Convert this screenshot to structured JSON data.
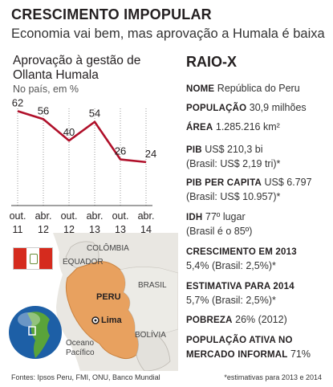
{
  "header": {
    "title": "CRESCIMENTO IMPOPULAR",
    "subtitle": "Economia vai bem, mas aprovação a Humala é baixa"
  },
  "chart_title": "Aprovação à gestão de Ollanta Humala",
  "chart_unit": "No país, em %",
  "chart_data": {
    "type": "line",
    "title": "Aprovação à gestão de Ollanta Humala",
    "subtitle": "No país, em %",
    "categories": [
      [
        "out.",
        "11"
      ],
      [
        "abr.",
        "12"
      ],
      [
        "out.",
        "12"
      ],
      [
        "abr.",
        "13"
      ],
      [
        "out.",
        "13"
      ],
      [
        "abr.",
        "14"
      ]
    ],
    "values": [
      62,
      56,
      40,
      54,
      26,
      24
    ],
    "data_labels": [
      "62",
      "56",
      "40",
      "54",
      "26",
      "24"
    ],
    "ylim": [
      0,
      70
    ],
    "grid": "vertical dotted",
    "line_color": "#b0102a"
  },
  "raio_x": {
    "heading": "RAIO-X",
    "items": [
      {
        "label": "NOME",
        "value": "República do Peru"
      },
      {
        "label": "POPULAÇÃO",
        "value": "30,9 milhões"
      },
      {
        "label": "ÁREA",
        "value": "1.285.216 km²"
      },
      {
        "label": "PIB",
        "value": "US$ 210,3 bi",
        "value2": "(Brasil: US$ 2,19 tri)*"
      },
      {
        "label": "PIB PER CAPITA",
        "value": "US$ 6.797",
        "value2": "(Brasil: US$ 10.957)*"
      },
      {
        "label": "IDH",
        "value": "77º lugar",
        "value2": "(Brasil é o 85º)"
      },
      {
        "label": "CRESCIMENTO EM 2013",
        "value2": "5,4% (Brasil: 2,5%)*"
      },
      {
        "label": "ESTIMATIVA PARA 2014",
        "value2": "5,7% (Brasil: 2,5%)*"
      },
      {
        "label": "POBREZA",
        "value": "26% (2012)"
      },
      {
        "label": "POPULAÇÃO ATIVA NO",
        "label2": "MERCADO INFORMAL",
        "value": "71%"
      }
    ]
  },
  "map": {
    "labels": {
      "colombia": "COLÔMBIA",
      "ecuador": "EQUADOR",
      "peru": "PERU",
      "brasil": "BRASIL",
      "lima": "Lima",
      "bolivia": "BOLÍVIA",
      "ocean_line1": "Oceano",
      "ocean_line2": "Pacífico"
    },
    "colors": {
      "peru": "#e8a15f",
      "neighbors": "#e9e7e2",
      "ocean": "#ffffff",
      "globe": "#1d5fa6"
    }
  },
  "footer": {
    "sources": "Fontes: Ipsos Peru, FMI, ONU, Banco Mundial",
    "note": "*estimativas para 2013 e 2014"
  },
  "colors": {
    "line": "#b0102a",
    "flag_red": "#d52b1e"
  }
}
